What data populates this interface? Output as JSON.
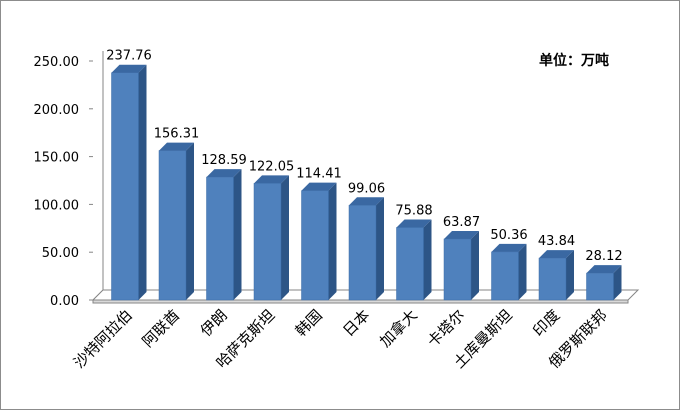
{
  "chart_data": {
    "type": "bar",
    "unit_label": "单位：万吨",
    "categories": [
      "沙特阿拉伯",
      "阿联酋",
      "伊朗",
      "哈萨克斯坦",
      "韩国",
      "日本",
      "加拿大",
      "卡塔尔",
      "土库曼斯坦",
      "印度",
      "俄罗斯联邦"
    ],
    "values": [
      237.76,
      156.31,
      128.59,
      122.05,
      114.41,
      99.06,
      75.88,
      63.87,
      50.36,
      43.84,
      28.12
    ],
    "value_labels": [
      "237.76",
      "156.31",
      "128.59",
      "122.05",
      "114.41",
      "99.06",
      "75.88",
      "63.87",
      "50.36",
      "43.84",
      "28.12"
    ],
    "y_ticks": [
      "0.00",
      "50.00",
      "100.00",
      "150.00",
      "200.00",
      "250.00"
    ],
    "ylim": [
      0,
      250
    ],
    "grid": false,
    "bar_style": "3d",
    "colors": {
      "bar_front": "#4f81bd",
      "bar_side": "#2d5586",
      "bar_top": "#3a68a2"
    }
  }
}
